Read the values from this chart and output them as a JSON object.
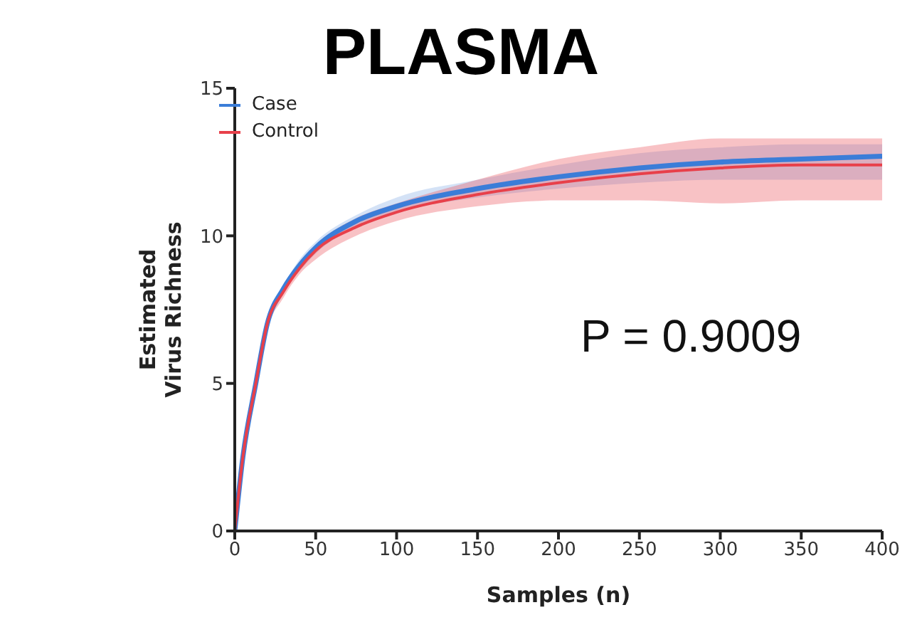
{
  "chart_data": {
    "type": "line",
    "title": "PLASMA",
    "xlabel": "Samples (n)",
    "ylabel": "Estimated Virus Richness",
    "x": [
      0,
      5,
      13,
      20,
      30,
      40,
      50,
      75,
      100,
      150,
      200,
      250,
      300,
      350,
      400
    ],
    "series": [
      {
        "name": "Case",
        "color": "#3b7dd8",
        "values": [
          0,
          2.5,
          5,
          7,
          8.2,
          9,
          9.6,
          10.5,
          11.0,
          11.6,
          12.0,
          12.3,
          12.5,
          12.6,
          12.7
        ],
        "lower": [
          0,
          2.4,
          4.9,
          6.9,
          8.1,
          8.8,
          9.4,
          10.3,
          10.8,
          11.3,
          11.6,
          11.8,
          11.9,
          11.9,
          11.9
        ],
        "upper": [
          0,
          2.6,
          5.1,
          7.1,
          8.3,
          9.2,
          9.8,
          10.7,
          11.3,
          11.9,
          12.4,
          12.8,
          13.0,
          13.1,
          13.1
        ]
      },
      {
        "name": "Control",
        "color": "#e8404a",
        "values": [
          0,
          2.5,
          5,
          7,
          8.1,
          8.9,
          9.5,
          10.3,
          10.8,
          11.4,
          11.8,
          12.1,
          12.3,
          12.4,
          12.4
        ],
        "lower": [
          0,
          2.4,
          4.9,
          6.8,
          7.9,
          8.7,
          9.2,
          10.0,
          10.5,
          11.0,
          11.2,
          11.2,
          11.1,
          11.2,
          11.2
        ],
        "upper": [
          0,
          2.6,
          5.1,
          7.1,
          8.3,
          9.1,
          9.7,
          10.6,
          11.1,
          11.9,
          12.6,
          13.0,
          13.3,
          13.3,
          13.3
        ]
      }
    ],
    "xlim": [
      0,
      400
    ],
    "xticks": [
      0,
      50,
      100,
      150,
      200,
      250,
      300,
      350,
      400
    ],
    "ylim": [
      0,
      15
    ],
    "yticks": [
      0,
      5,
      10,
      15
    ],
    "annotations": [
      "P = 0.9009"
    ],
    "grid": false,
    "legend": "top left",
    "marker": "none",
    "line_style": "solid"
  }
}
